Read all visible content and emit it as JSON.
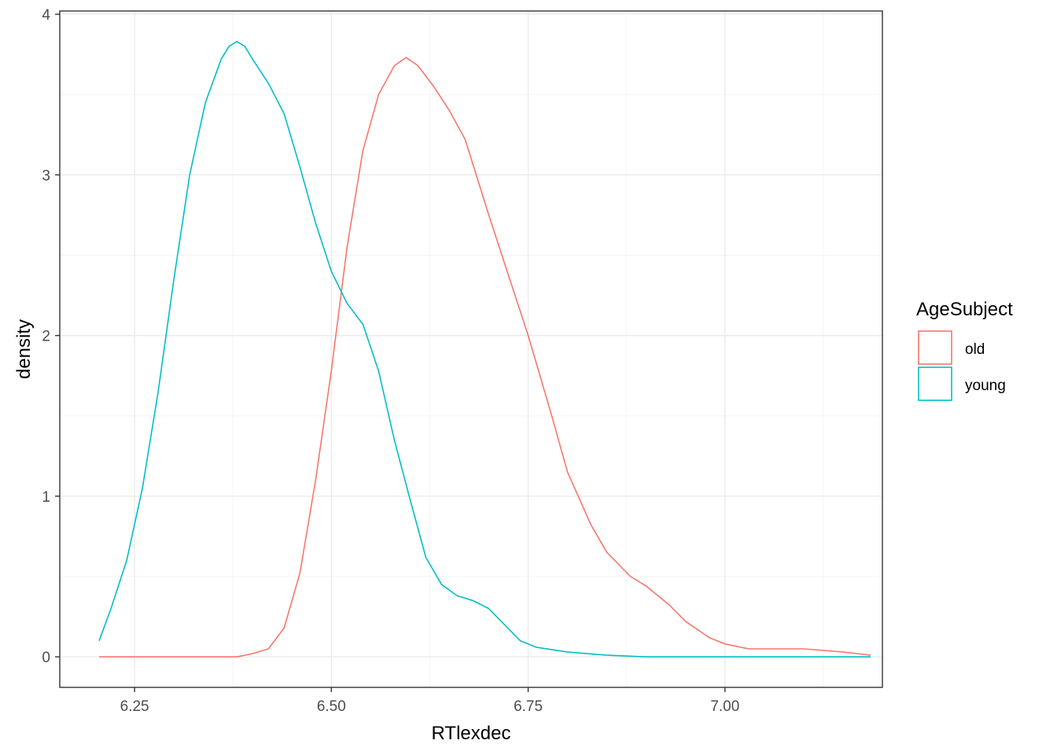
{
  "chart_data": {
    "type": "line",
    "xlabel": "RTlexdec",
    "ylabel": "density",
    "xlim": [
      6.155,
      7.2
    ],
    "ylim": [
      -0.19,
      4.02
    ],
    "x_ticks": [
      6.25,
      6.5,
      6.75,
      7.0
    ],
    "x_tick_labels": [
      "6.25",
      "6.50",
      "6.75",
      "7.00"
    ],
    "y_ticks": [
      0,
      1,
      2,
      3,
      4
    ],
    "y_tick_labels": [
      "0",
      "1",
      "2",
      "3",
      "4"
    ],
    "grid": true,
    "legend": {
      "title": "AgeSubject",
      "position": "right",
      "items": [
        "old",
        "young"
      ]
    },
    "series": [
      {
        "name": "old",
        "color": "#F8766D",
        "x": [
          6.205,
          6.25,
          6.3,
          6.35,
          6.38,
          6.4,
          6.42,
          6.44,
          6.46,
          6.48,
          6.5,
          6.52,
          6.54,
          6.56,
          6.58,
          6.595,
          6.61,
          6.63,
          6.65,
          6.67,
          6.7,
          6.72,
          6.75,
          6.78,
          6.8,
          6.83,
          6.85,
          6.88,
          6.9,
          6.93,
          6.95,
          6.98,
          7.0,
          7.03,
          7.05,
          7.1,
          7.15,
          7.185
        ],
        "y": [
          0.0,
          0.0,
          0.0,
          0.0,
          0.0,
          0.02,
          0.05,
          0.18,
          0.52,
          1.1,
          1.78,
          2.55,
          3.15,
          3.5,
          3.68,
          3.73,
          3.68,
          3.55,
          3.4,
          3.22,
          2.75,
          2.45,
          2.0,
          1.5,
          1.15,
          0.82,
          0.65,
          0.5,
          0.44,
          0.32,
          0.22,
          0.12,
          0.08,
          0.05,
          0.05,
          0.05,
          0.03,
          0.01
        ]
      },
      {
        "name": "young",
        "color": "#00BFC4",
        "x": [
          6.205,
          6.22,
          6.24,
          6.26,
          6.28,
          6.3,
          6.32,
          6.34,
          6.36,
          6.37,
          6.38,
          6.39,
          6.4,
          6.42,
          6.44,
          6.46,
          6.48,
          6.5,
          6.52,
          6.54,
          6.56,
          6.58,
          6.6,
          6.62,
          6.64,
          6.66,
          6.68,
          6.7,
          6.72,
          6.74,
          6.76,
          6.8,
          6.85,
          6.9,
          7.0,
          7.1,
          7.185
        ],
        "y": [
          0.1,
          0.3,
          0.6,
          1.05,
          1.65,
          2.35,
          3.0,
          3.45,
          3.72,
          3.8,
          3.83,
          3.8,
          3.72,
          3.57,
          3.38,
          3.05,
          2.7,
          2.4,
          2.2,
          2.07,
          1.78,
          1.35,
          0.98,
          0.62,
          0.45,
          0.38,
          0.35,
          0.3,
          0.2,
          0.1,
          0.06,
          0.03,
          0.01,
          0.0,
          0.0,
          0.0,
          0.0
        ]
      }
    ]
  }
}
